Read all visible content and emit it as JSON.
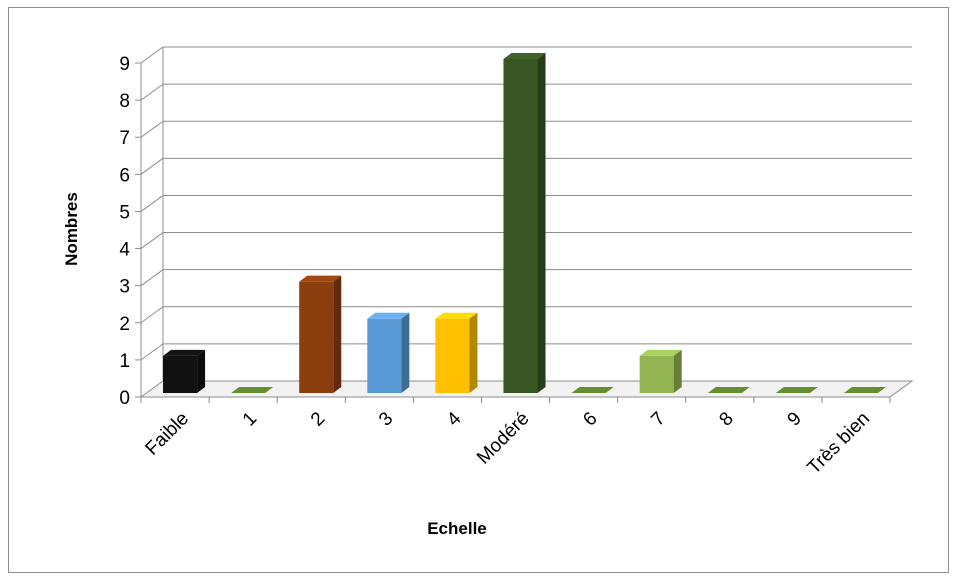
{
  "chart_data": {
    "type": "bar",
    "categories": [
      "Faible",
      "1",
      "2",
      "3",
      "4",
      "Modéré",
      "6",
      "7",
      "8",
      "9",
      "Très bien"
    ],
    "values": [
      1,
      0,
      3,
      2,
      2,
      9,
      0,
      1,
      0,
      0,
      0
    ],
    "colors": [
      "#111111",
      "#5a7a2a",
      "#8b3f0f",
      "#5b9bd5",
      "#ffc000",
      "#375623",
      "#5a7a2a",
      "#92b552",
      "#5a7a2a",
      "#5a7a2a",
      "#5a7a2a"
    ],
    "xlabel": "Echelle",
    "ylabel": "Nombres",
    "ylim": [
      0,
      9
    ],
    "yticks": [
      "0",
      "1",
      "2",
      "3",
      "4",
      "5",
      "6",
      "7",
      "8",
      "9"
    ],
    "grid": true,
    "style": "3d-column"
  }
}
